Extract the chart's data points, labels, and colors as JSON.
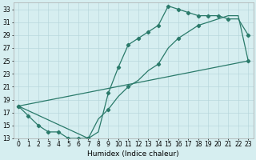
{
  "xlabel": "Humidex (Indice chaleur)",
  "bg_color": "#d6eef0",
  "grid_color": "#b8d8dc",
  "line_color": "#2a7a6a",
  "xlim": [
    -0.5,
    23.5
  ],
  "ylim": [
    13,
    34
  ],
  "xticks": [
    0,
    1,
    2,
    3,
    4,
    5,
    6,
    7,
    8,
    9,
    10,
    11,
    12,
    13,
    14,
    15,
    16,
    17,
    18,
    19,
    20,
    21,
    22,
    23
  ],
  "yticks": [
    13,
    15,
    17,
    19,
    21,
    23,
    25,
    27,
    29,
    31,
    33
  ],
  "curve1_x": [
    0,
    1,
    2,
    3,
    4,
    5,
    6,
    7,
    8,
    9,
    10,
    11,
    12,
    13,
    14,
    15,
    16,
    17,
    18,
    19,
    20,
    21,
    22,
    23
  ],
  "curve1_y": [
    18,
    16.5,
    15,
    14,
    14,
    13,
    13,
    13,
    14,
    20,
    24,
    27.5,
    28.5,
    29.5,
    30.5,
    33.5,
    33,
    32.5,
    32,
    32,
    32,
    31.5,
    31.5,
    29
  ],
  "curve2_x": [
    0,
    7,
    8,
    9,
    10,
    11,
    12,
    13,
    14,
    15,
    16,
    17,
    18,
    19,
    20,
    21,
    22,
    23
  ],
  "curve2_y": [
    18,
    13,
    16,
    17.5,
    19.5,
    21,
    22,
    23.5,
    24.5,
    27,
    28.5,
    29.5,
    30.5,
    31,
    31.5,
    32,
    32,
    25
  ],
  "line3_x": [
    0,
    23
  ],
  "line3_y": [
    18,
    25
  ],
  "curve1_markers": [
    0,
    1,
    2,
    3,
    4,
    5,
    6,
    7,
    9,
    10,
    11,
    12,
    13,
    14,
    15,
    16,
    17,
    18,
    19,
    20,
    21,
    23
  ],
  "curve2_markers": [
    7,
    9,
    14,
    16,
    18,
    20,
    23
  ]
}
